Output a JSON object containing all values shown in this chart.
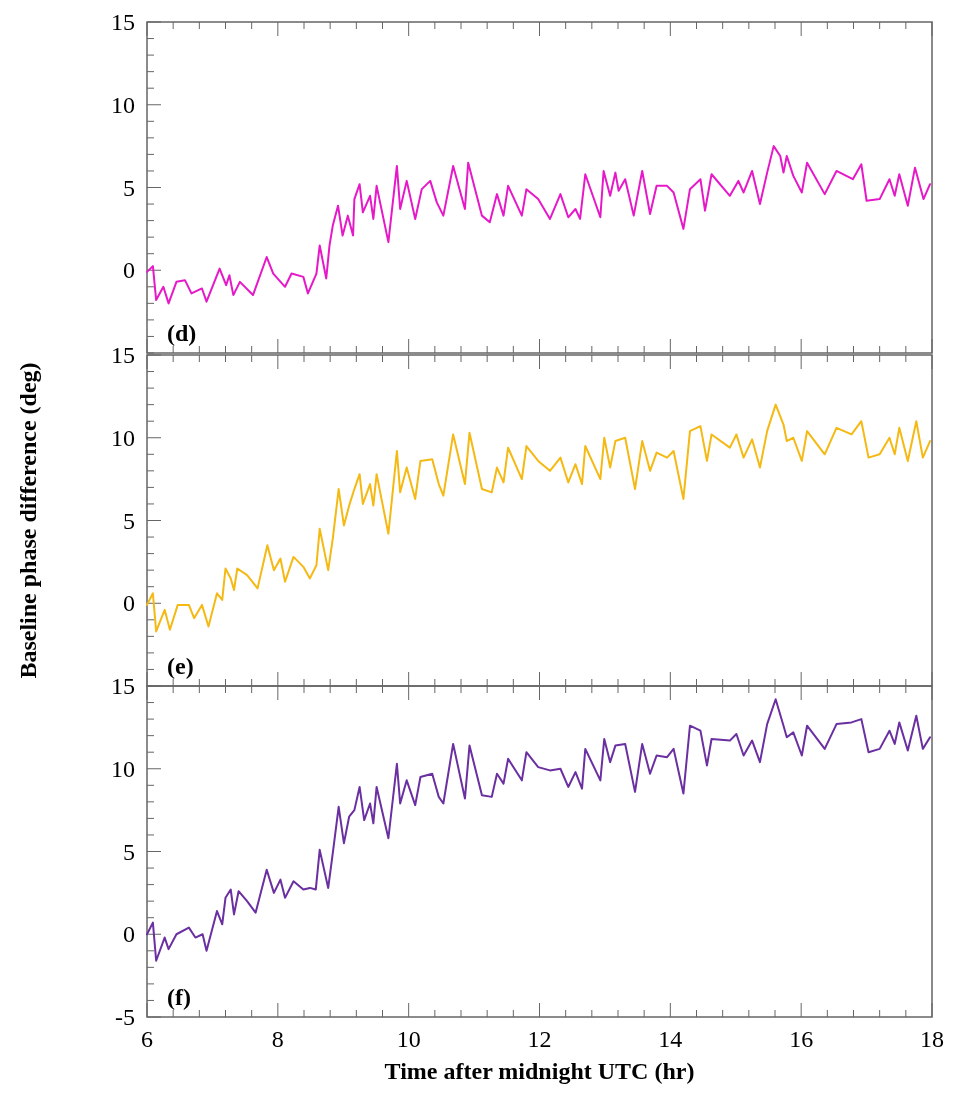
{
  "chart_data": [
    {
      "type": "line",
      "tick_labels": "y",
      "annotations": [
        "(d)"
      ],
      "xlim": [
        6,
        18
      ],
      "ylim": [
        -5,
        15
      ],
      "xticks": [
        6,
        {
          "value": 6.4,
          "label": null
        },
        {
          "value": 6.8,
          "label": null
        },
        {
          "value": 7.2,
          "label": null
        },
        {
          "value": 7.6,
          "label": null
        },
        8,
        {
          "value": 8.4,
          "label": null
        },
        {
          "value": 8.8,
          "label": null
        },
        {
          "value": 9.2,
          "label": null
        },
        {
          "value": 9.6,
          "label": null
        },
        10,
        {
          "value": 10.4,
          "label": null
        },
        {
          "value": 10.8,
          "label": null
        },
        {
          "value": 11.2,
          "label": null
        },
        {
          "value": 11.6,
          "label": null
        },
        12,
        {
          "value": 12.4,
          "label": null
        },
        {
          "value": 12.8,
          "label": null
        },
        {
          "value": 13.2,
          "label": null
        },
        {
          "value": 13.6,
          "label": null
        },
        14,
        {
          "value": 14.4,
          "label": null
        },
        {
          "value": 14.8,
          "label": null
        },
        {
          "value": 15.2,
          "label": null
        },
        {
          "value": 15.6,
          "label": null
        },
        16,
        {
          "value": 16.4,
          "label": null
        },
        {
          "value": 16.8,
          "label": null
        },
        {
          "value": 17.2,
          "label": null
        },
        {
          "value": 17.6,
          "label": null
        },
        18
      ],
      "yticks": [
        {
          "value": -5,
          "label": null
        },
        {
          "value": -4,
          "label": null
        },
        {
          "value": -3,
          "label": null
        },
        {
          "value": -2,
          "label": null
        },
        {
          "value": -1,
          "label": null
        },
        0,
        {
          "value": 1,
          "label": null
        },
        {
          "value": 2,
          "label": null
        },
        {
          "value": 3,
          "label": null
        },
        {
          "value": 4,
          "label": null
        },
        5,
        {
          "value": 6,
          "label": null
        },
        {
          "value": 7,
          "label": null
        },
        {
          "value": 8,
          "label": null
        },
        {
          "value": 9,
          "label": null
        },
        10,
        {
          "value": 11,
          "label": null
        },
        {
          "value": 12,
          "label": null
        },
        {
          "value": 13,
          "label": null
        },
        {
          "value": 14,
          "label": null
        },
        15
      ],
      "series": [
        {
          "color": "#e619c8",
          "x": [
            6.0,
            6.09,
            6.14,
            6.25,
            6.33,
            6.45,
            6.58,
            6.68,
            6.84,
            6.91,
            7.11,
            7.21,
            7.26,
            7.32,
            7.42,
            7.62,
            7.83,
            7.93,
            8.11,
            8.21,
            8.39,
            8.46,
            8.59,
            8.64,
            8.74,
            8.79,
            8.84,
            8.92,
            8.99,
            9.07,
            9.15,
            9.17,
            9.25,
            9.3,
            9.41,
            9.46,
            9.51,
            9.69,
            9.82,
            9.87,
            9.97,
            10.1,
            10.2,
            10.33,
            10.43,
            10.53,
            10.68,
            10.86,
            10.91,
            11.12,
            11.24,
            11.35,
            11.45,
            11.52,
            11.73,
            11.8,
            11.98,
            12.16,
            12.32,
            12.44,
            12.55,
            12.62,
            12.7,
            12.93,
            12.98,
            13.08,
            13.16,
            13.21,
            13.31,
            13.44,
            13.57,
            13.69,
            13.79,
            13.95,
            14.05,
            14.2,
            14.3,
            14.46,
            14.53,
            14.63,
            14.91,
            15.04,
            15.12,
            15.25,
            15.37,
            15.48,
            15.58,
            15.68,
            15.73,
            15.78,
            15.88,
            16.01,
            16.09,
            16.36,
            16.54,
            16.79,
            16.92,
            17.0,
            17.2,
            17.35,
            17.43,
            17.5,
            17.63,
            17.74,
            17.87,
            17.97
          ],
          "values": [
            -0.1,
            0.25,
            -1.8,
            -1.0,
            -2.0,
            -0.7,
            -0.6,
            -1.4,
            -1.1,
            -1.9,
            0.1,
            -0.9,
            -0.3,
            -1.5,
            -0.7,
            -1.5,
            0.8,
            -0.2,
            -1.0,
            -0.2,
            -0.4,
            -1.4,
            -0.2,
            1.5,
            -0.5,
            1.5,
            2.7,
            3.9,
            2.1,
            3.3,
            2.1,
            4.3,
            5.2,
            3.5,
            4.5,
            3.1,
            5.1,
            1.7,
            6.3,
            3.7,
            5.4,
            3.1,
            4.9,
            5.4,
            4.1,
            3.3,
            6.3,
            3.7,
            6.5,
            3.3,
            2.9,
            4.6,
            3.3,
            5.1,
            3.3,
            4.9,
            4.3,
            3.1,
            4.6,
            3.2,
            3.7,
            3.1,
            5.8,
            3.2,
            6.0,
            4.5,
            5.9,
            4.8,
            5.5,
            3.3,
            6.0,
            3.4,
            5.1,
            5.1,
            4.7,
            2.5,
            4.9,
            5.5,
            3.6,
            5.8,
            4.5,
            5.4,
            4.7,
            6.0,
            4.0,
            5.9,
            7.5,
            6.9,
            5.9,
            6.9,
            5.7,
            4.7,
            6.5,
            4.6,
            6.0,
            5.5,
            6.4,
            4.2,
            4.3,
            5.5,
            4.5,
            5.8,
            3.9,
            6.2,
            4.3,
            5.2
          ]
        }
      ]
    },
    {
      "type": "line",
      "tick_labels": "y",
      "ylabel": "Baseline phase difference (deg)",
      "annotations": [
        "(e)"
      ],
      "xlim": [
        6,
        18
      ],
      "ylim": [
        -5,
        15
      ],
      "xticks": [
        6,
        {
          "value": 6.4,
          "label": null
        },
        {
          "value": 6.8,
          "label": null
        },
        {
          "value": 7.2,
          "label": null
        },
        {
          "value": 7.6,
          "label": null
        },
        8,
        {
          "value": 8.4,
          "label": null
        },
        {
          "value": 8.8,
          "label": null
        },
        {
          "value": 9.2,
          "label": null
        },
        {
          "value": 9.6,
          "label": null
        },
        10,
        {
          "value": 10.4,
          "label": null
        },
        {
          "value": 10.8,
          "label": null
        },
        {
          "value": 11.2,
          "label": null
        },
        {
          "value": 11.6,
          "label": null
        },
        12,
        {
          "value": 12.4,
          "label": null
        },
        {
          "value": 12.8,
          "label": null
        },
        {
          "value": 13.2,
          "label": null
        },
        {
          "value": 13.6,
          "label": null
        },
        14,
        {
          "value": 14.4,
          "label": null
        },
        {
          "value": 14.8,
          "label": null
        },
        {
          "value": 15.2,
          "label": null
        },
        {
          "value": 15.6,
          "label": null
        },
        16,
        {
          "value": 16.4,
          "label": null
        },
        {
          "value": 16.8,
          "label": null
        },
        {
          "value": 17.2,
          "label": null
        },
        {
          "value": 17.6,
          "label": null
        },
        18
      ],
      "yticks": [
        {
          "value": -5,
          "label": null
        },
        {
          "value": -4,
          "label": null
        },
        {
          "value": -3,
          "label": null
        },
        {
          "value": -2,
          "label": null
        },
        {
          "value": -1,
          "label": null
        },
        0,
        {
          "value": 1,
          "label": null
        },
        {
          "value": 2,
          "label": null
        },
        {
          "value": 3,
          "label": null
        },
        {
          "value": 4,
          "label": null
        },
        5,
        {
          "value": 6,
          "label": null
        },
        {
          "value": 7,
          "label": null
        },
        {
          "value": 8,
          "label": null
        },
        {
          "value": 9,
          "label": null
        },
        10,
        {
          "value": 11,
          "label": null
        },
        {
          "value": 12,
          "label": null
        },
        {
          "value": 13,
          "label": null
        },
        {
          "value": 14,
          "label": null
        },
        15
      ],
      "series": [
        {
          "color": "#f5b914",
          "x": [
            6.0,
            6.09,
            6.14,
            6.27,
            6.35,
            6.47,
            6.64,
            6.72,
            6.84,
            6.94,
            7.07,
            7.15,
            7.2,
            7.28,
            7.33,
            7.38,
            7.53,
            7.69,
            7.84,
            7.94,
            8.04,
            8.11,
            8.24,
            8.39,
            8.49,
            8.59,
            8.64,
            8.77,
            8.84,
            8.93,
            9.01,
            9.09,
            9.17,
            9.25,
            9.3,
            9.41,
            9.46,
            9.51,
            9.69,
            9.82,
            9.87,
            9.97,
            10.1,
            10.18,
            10.36,
            10.46,
            10.53,
            10.68,
            10.86,
            10.93,
            11.12,
            11.27,
            11.35,
            11.45,
            11.52,
            11.73,
            11.8,
            11.98,
            12.16,
            12.32,
            12.44,
            12.55,
            12.65,
            12.7,
            12.93,
            12.99,
            13.08,
            13.16,
            13.31,
            13.46,
            13.57,
            13.69,
            13.79,
            13.95,
            14.05,
            14.2,
            14.3,
            14.46,
            14.56,
            14.63,
            14.91,
            15.01,
            15.12,
            15.25,
            15.37,
            15.48,
            15.61,
            15.73,
            15.78,
            15.88,
            16.01,
            16.09,
            16.36,
            16.54,
            16.77,
            16.92,
            17.03,
            17.2,
            17.35,
            17.43,
            17.5,
            17.63,
            17.76,
            17.86,
            17.97
          ],
          "values": [
            -0.1,
            0.6,
            -1.7,
            -0.4,
            -1.6,
            -0.1,
            -0.1,
            -0.9,
            -0.1,
            -1.4,
            0.6,
            0.2,
            2.1,
            1.5,
            0.8,
            2.1,
            1.7,
            0.9,
            3.5,
            2.0,
            2.7,
            1.3,
            2.8,
            2.2,
            1.5,
            2.3,
            4.5,
            2.0,
            3.9,
            6.9,
            4.7,
            5.9,
            6.9,
            7.8,
            6.0,
            7.2,
            5.9,
            7.8,
            4.2,
            9.2,
            6.7,
            8.2,
            6.3,
            8.6,
            8.7,
            7.2,
            6.5,
            10.2,
            7.2,
            10.3,
            6.9,
            6.7,
            8.2,
            7.3,
            9.4,
            7.5,
            9.5,
            8.6,
            8.0,
            8.8,
            7.3,
            8.4,
            7.2,
            9.5,
            7.5,
            10.0,
            8.2,
            9.8,
            10.0,
            6.9,
            9.8,
            8.0,
            9.1,
            8.8,
            9.2,
            6.3,
            10.4,
            10.7,
            8.6,
            10.2,
            9.4,
            10.2,
            8.8,
            9.9,
            8.2,
            10.4,
            12.0,
            10.8,
            9.8,
            10.0,
            8.6,
            10.4,
            9.0,
            10.6,
            10.2,
            11.0,
            8.8,
            9.0,
            10.0,
            9.0,
            10.6,
            8.6,
            11.0,
            8.8,
            9.8
          ]
        }
      ]
    },
    {
      "type": "line",
      "xlabel": "Time after midnight UTC (hr)",
      "annotations": [
        "(f)"
      ],
      "xlim": [
        6,
        18
      ],
      "ylim": [
        -5,
        15
      ],
      "xticks": [
        6,
        {
          "value": 6.4,
          "label": null
        },
        {
          "value": 6.8,
          "label": null
        },
        {
          "value": 7.2,
          "label": null
        },
        {
          "value": 7.6,
          "label": null
        },
        8,
        {
          "value": 8.4,
          "label": null
        },
        {
          "value": 8.8,
          "label": null
        },
        {
          "value": 9.2,
          "label": null
        },
        {
          "value": 9.6,
          "label": null
        },
        10,
        {
          "value": 10.4,
          "label": null
        },
        {
          "value": 10.8,
          "label": null
        },
        {
          "value": 11.2,
          "label": null
        },
        {
          "value": 11.6,
          "label": null
        },
        12,
        {
          "value": 12.4,
          "label": null
        },
        {
          "value": 12.8,
          "label": null
        },
        {
          "value": 13.2,
          "label": null
        },
        {
          "value": 13.6,
          "label": null
        },
        14,
        {
          "value": 14.4,
          "label": null
        },
        {
          "value": 14.8,
          "label": null
        },
        {
          "value": 15.2,
          "label": null
        },
        {
          "value": 15.6,
          "label": null
        },
        16,
        {
          "value": 16.4,
          "label": null
        },
        {
          "value": 16.8,
          "label": null
        },
        {
          "value": 17.2,
          "label": null
        },
        {
          "value": 17.6,
          "label": null
        },
        18
      ],
      "yticks": [
        -5,
        {
          "value": -4,
          "label": null
        },
        {
          "value": -3,
          "label": null
        },
        {
          "value": -2,
          "label": null
        },
        {
          "value": -1,
          "label": null
        },
        0,
        {
          "value": 1,
          "label": null
        },
        {
          "value": 2,
          "label": null
        },
        {
          "value": 3,
          "label": null
        },
        {
          "value": 4,
          "label": null
        },
        5,
        {
          "value": 6,
          "label": null
        },
        {
          "value": 7,
          "label": null
        },
        {
          "value": 8,
          "label": null
        },
        {
          "value": 9,
          "label": null
        },
        10,
        {
          "value": 11,
          "label": null
        },
        {
          "value": 12,
          "label": null
        },
        {
          "value": 13,
          "label": null
        },
        {
          "value": 14,
          "label": null
        },
        15
      ],
      "series": [
        {
          "color": "#6a2fa0",
          "x": [
            6.0,
            6.09,
            6.14,
            6.27,
            6.33,
            6.45,
            6.64,
            6.74,
            6.85,
            6.91,
            7.07,
            7.15,
            7.2,
            7.28,
            7.33,
            7.4,
            7.53,
            7.66,
            7.83,
            7.94,
            8.04,
            8.11,
            8.24,
            8.39,
            8.49,
            8.58,
            8.64,
            8.77,
            8.84,
            8.93,
            9.01,
            9.09,
            9.17,
            9.25,
            9.32,
            9.41,
            9.46,
            9.51,
            9.69,
            9.82,
            9.87,
            9.97,
            10.1,
            10.18,
            10.36,
            10.46,
            10.53,
            10.68,
            10.86,
            10.93,
            11.12,
            11.27,
            11.35,
            11.45,
            11.52,
            11.73,
            11.8,
            11.98,
            12.16,
            12.32,
            12.44,
            12.55,
            12.65,
            12.7,
            12.93,
            12.99,
            13.08,
            13.16,
            13.31,
            13.46,
            13.57,
            13.69,
            13.79,
            13.95,
            14.05,
            14.2,
            14.3,
            14.46,
            14.56,
            14.63,
            14.91,
            15.01,
            15.12,
            15.25,
            15.37,
            15.48,
            15.61,
            15.73,
            15.78,
            15.88,
            16.01,
            16.09,
            16.36,
            16.54,
            16.77,
            16.92,
            17.03,
            17.2,
            17.35,
            17.43,
            17.5,
            17.63,
            17.76,
            17.86,
            17.97
          ],
          "values": [
            0.0,
            0.7,
            -1.6,
            -0.2,
            -0.9,
            0.0,
            0.4,
            -0.2,
            0.0,
            -1.0,
            1.4,
            0.6,
            2.2,
            2.7,
            1.2,
            2.6,
            2.0,
            1.3,
            3.9,
            2.5,
            3.3,
            2.2,
            3.2,
            2.7,
            2.8,
            2.7,
            5.1,
            2.8,
            4.9,
            7.7,
            5.5,
            7.1,
            7.5,
            8.9,
            6.9,
            7.9,
            6.7,
            8.9,
            5.8,
            10.3,
            7.9,
            9.3,
            7.8,
            9.5,
            9.7,
            8.3,
            7.9,
            11.5,
            8.2,
            11.4,
            8.4,
            8.3,
            9.7,
            9.1,
            10.6,
            9.3,
            11.0,
            10.1,
            9.9,
            10.0,
            8.9,
            9.8,
            8.8,
            11.2,
            9.3,
            11.8,
            10.4,
            11.4,
            11.5,
            8.6,
            11.5,
            9.7,
            10.8,
            10.7,
            11.2,
            8.5,
            12.6,
            12.3,
            10.2,
            11.8,
            11.7,
            12.1,
            10.8,
            11.7,
            10.4,
            12.7,
            14.2,
            12.6,
            11.9,
            12.2,
            10.8,
            12.6,
            11.2,
            12.7,
            12.8,
            13.0,
            11.0,
            11.2,
            12.3,
            11.5,
            12.8,
            11.1,
            13.2,
            11.2,
            11.9
          ]
        }
      ]
    }
  ]
}
